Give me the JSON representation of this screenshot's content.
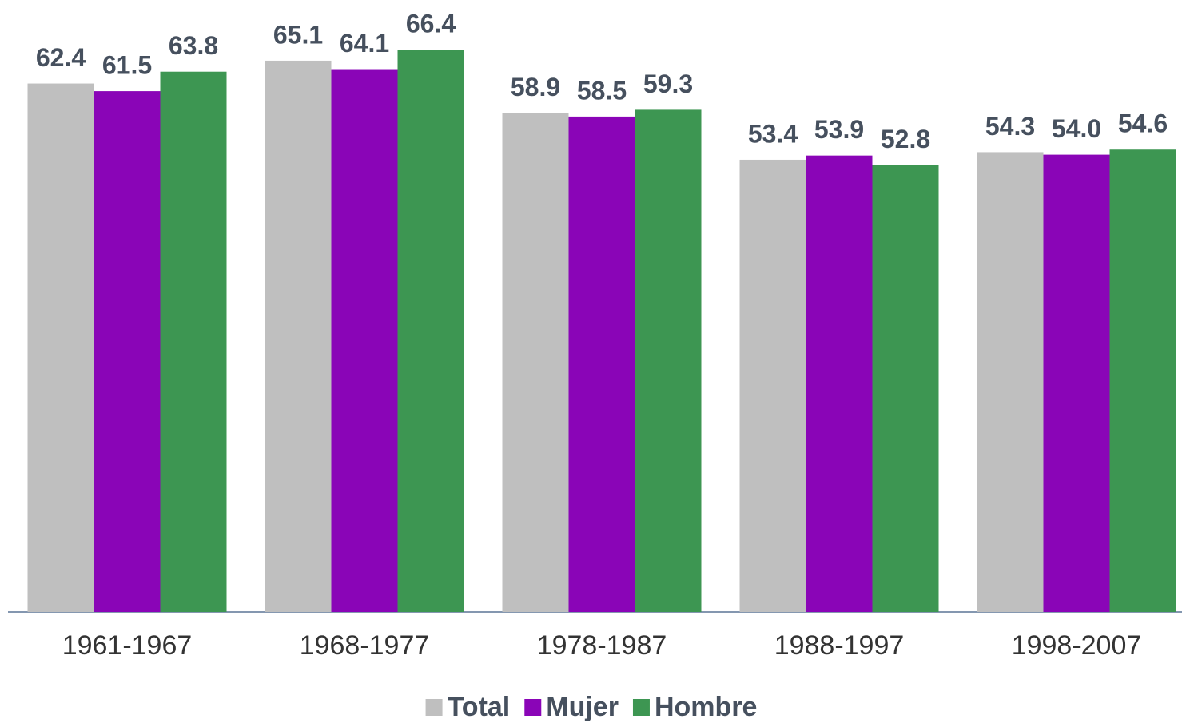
{
  "chart_data": {
    "type": "bar",
    "categories": [
      "1961-1967",
      "1968-1977",
      "1978-1987",
      "1988-1997",
      "1998-2007"
    ],
    "series": [
      {
        "name": "Total",
        "color": "#bfbfbf",
        "values": [
          62.4,
          65.1,
          58.9,
          53.4,
          54.3
        ],
        "value_labels": [
          "62.4",
          "65.1",
          "58.9",
          "53.4",
          "54.3"
        ]
      },
      {
        "name": "Mujer",
        "color": "#8a05b7",
        "values": [
          61.5,
          64.1,
          58.5,
          53.9,
          54
        ],
        "value_labels": [
          "61.5",
          "64.1",
          "58.5",
          "53.9",
          "54.0"
        ]
      },
      {
        "name": "Hombre",
        "color": "#3d9652",
        "values": [
          63.8,
          66.4,
          59.3,
          52.8,
          54.6
        ],
        "value_labels": [
          "63.8",
          "66.4",
          "59.3",
          "52.8",
          "54.6"
        ]
      }
    ],
    "ylim": [
      0,
      70
    ],
    "legend": "bottom"
  }
}
